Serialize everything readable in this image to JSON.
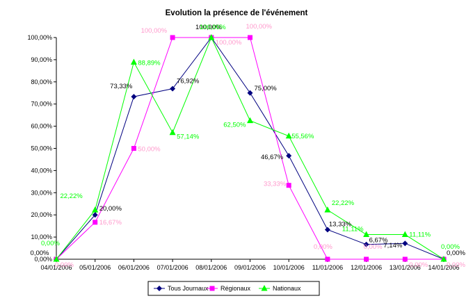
{
  "chart_data": {
    "type": "line",
    "title": "Evolution la présence de l'événement",
    "categories": [
      "04/01/2006",
      "05/01/2006",
      "06/01/2006",
      "07/01/2006",
      "08/01/2006",
      "09/01/2006",
      "10/01/2006",
      "11/01/2006",
      "12/01/2006",
      "13/01/2006",
      "14/01/2006"
    ],
    "ylim": [
      0,
      100
    ],
    "ytick_labels": [
      "0,00%",
      "10,00%",
      "20,00%",
      "30,00%",
      "40,00%",
      "50,00%",
      "60,00%",
      "70,00%",
      "80,00%",
      "90,00%",
      "100,00%"
    ],
    "grid": false,
    "legend_position": "bottom",
    "series": [
      {
        "name": "Tous Journaux",
        "color": "#000080",
        "marker": "diamond",
        "values": [
          0,
          20,
          73.33,
          76.92,
          100,
          75,
          46.67,
          13.33,
          6.67,
          7.14,
          0
        ],
        "labels": [
          "0,00%",
          "20,00%",
          "73,33%",
          "76,92%",
          "100,00%",
          "75,00%",
          "46,67%",
          "13,33%",
          "6,67%",
          "7,14%",
          "0,00%"
        ]
      },
      {
        "name": "Régionaux",
        "color": "#FF00FF",
        "label_color": "#FF99CC",
        "marker": "square",
        "values": [
          0,
          16.67,
          50,
          100,
          100,
          100,
          33.33,
          0,
          0,
          0,
          0
        ],
        "labels": [
          "0,00%",
          "16,67%",
          "50,00%",
          "100,00%",
          "100,00%",
          "100,00%",
          "33,33%",
          "0,00%",
          "0,00%",
          "0,00%",
          "0,00%"
        ]
      },
      {
        "name": "Nationaux",
        "color": "#00FF00",
        "marker": "triangle",
        "values": [
          0,
          22.22,
          88.89,
          57.14,
          100,
          62.5,
          55.56,
          22.22,
          11.11,
          11.11,
          0
        ],
        "labels": [
          "0,00%",
          "22,22%",
          "88,89%",
          "57,14%",
          "100,00%",
          "62,50%",
          "55,56%",
          "22,22%",
          "11,11%",
          "11,11%",
          "0,00%"
        ]
      }
    ]
  }
}
